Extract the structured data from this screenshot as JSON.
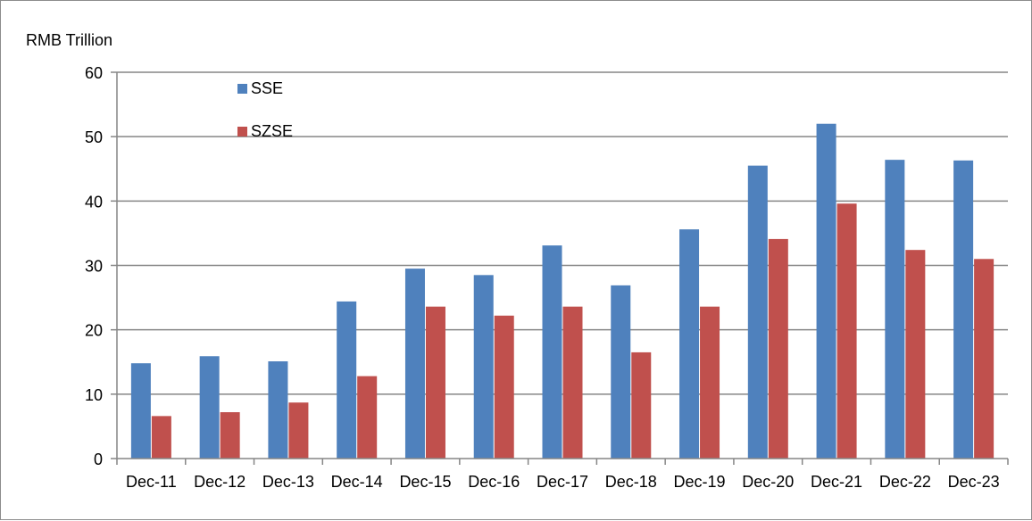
{
  "chart_data": {
    "type": "bar",
    "ylabel": "RMB Trillion",
    "categories": [
      "Dec-11",
      "Dec-12",
      "Dec-13",
      "Dec-14",
      "Dec-15",
      "Dec-16",
      "Dec-17",
      "Dec-18",
      "Dec-19",
      "Dec-20",
      "Dec-21",
      "Dec-22",
      "Dec-23"
    ],
    "series": [
      {
        "name": "SSE",
        "color": "#4f81bd",
        "values": [
          14.8,
          15.9,
          15.1,
          24.4,
          29.5,
          28.5,
          33.1,
          26.9,
          35.6,
          45.5,
          52.0,
          46.4,
          46.3
        ]
      },
      {
        "name": "SZSE",
        "color": "#c0504d",
        "values": [
          6.6,
          7.2,
          8.7,
          12.8,
          23.6,
          22.2,
          23.6,
          16.5,
          23.6,
          34.1,
          39.6,
          32.4,
          31.0
        ]
      }
    ],
    "ylim": [
      0,
      60
    ],
    "yticks": [
      0,
      10,
      20,
      30,
      40,
      50,
      60
    ],
    "grid": true,
    "legend_position": "top-left"
  }
}
